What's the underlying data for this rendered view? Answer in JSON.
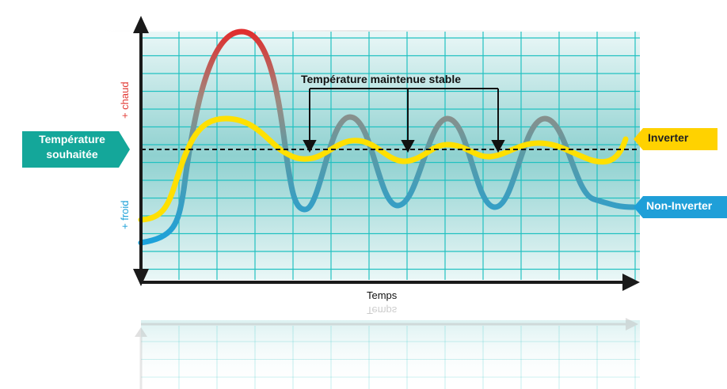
{
  "title": "Température maintenue stable",
  "x_axis_label": "Temps",
  "y_axis": {
    "top_label": "+ chaud",
    "bottom_label": "+ froid"
  },
  "setpoint_label": "Température souhaitée",
  "setpoint_lines": [
    "Température",
    "souhaitée"
  ],
  "series": [
    {
      "name": "Inverter",
      "color": "#ffe000",
      "label_bg": "#ffd200",
      "label_color": "#222222"
    },
    {
      "name": "Non-Inverter",
      "label_bg": "#1f9fd8",
      "label_color": "#ffffff",
      "gradient": [
        "#1aa4dc",
        "#d93636"
      ]
    }
  ],
  "colors": {
    "grid_line": "#22c1c1",
    "grid_bg_edge": "#e8f6f6",
    "grid_bg_center": "#8dd0cf",
    "setpoint_badge": "#14a79a",
    "axis": "#1a1a1a",
    "chaud": "#e23b36",
    "froid": "#1aa0d8"
  }
}
